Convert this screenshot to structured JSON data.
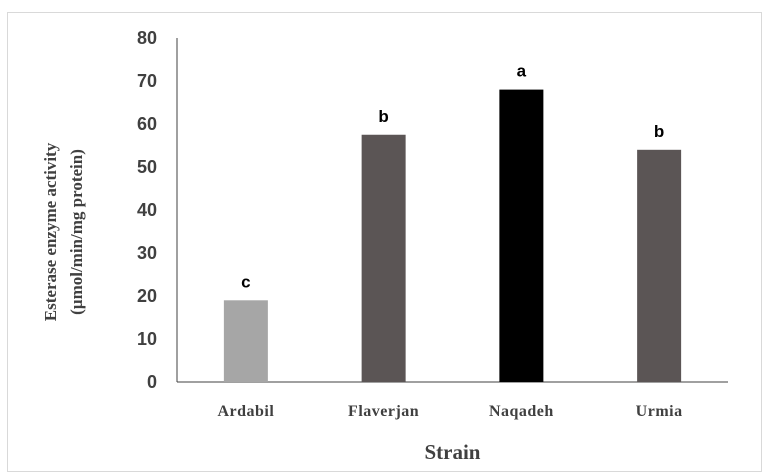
{
  "chart_data": {
    "type": "bar",
    "categories": [
      "Ardabil",
      "Flaverjan",
      "Naqadeh",
      "Urmia"
    ],
    "values": [
      19,
      57.5,
      68,
      54
    ],
    "data_labels": [
      "c",
      "b",
      "a",
      "b"
    ],
    "bar_colors": [
      "#a6a6a6",
      "#5b5555",
      "#000000",
      "#5b5555"
    ],
    "xlabel": "Strain",
    "ylabel_line1": "Esterase enzyme activity",
    "ylabel_line2": "(µmol/min/mg protein)",
    "ylim": [
      0,
      80
    ],
    "yticks": [
      "0",
      "10",
      "20",
      "30",
      "40",
      "50",
      "60",
      "70",
      "80"
    ],
    "grid": false,
    "legend": "none"
  }
}
